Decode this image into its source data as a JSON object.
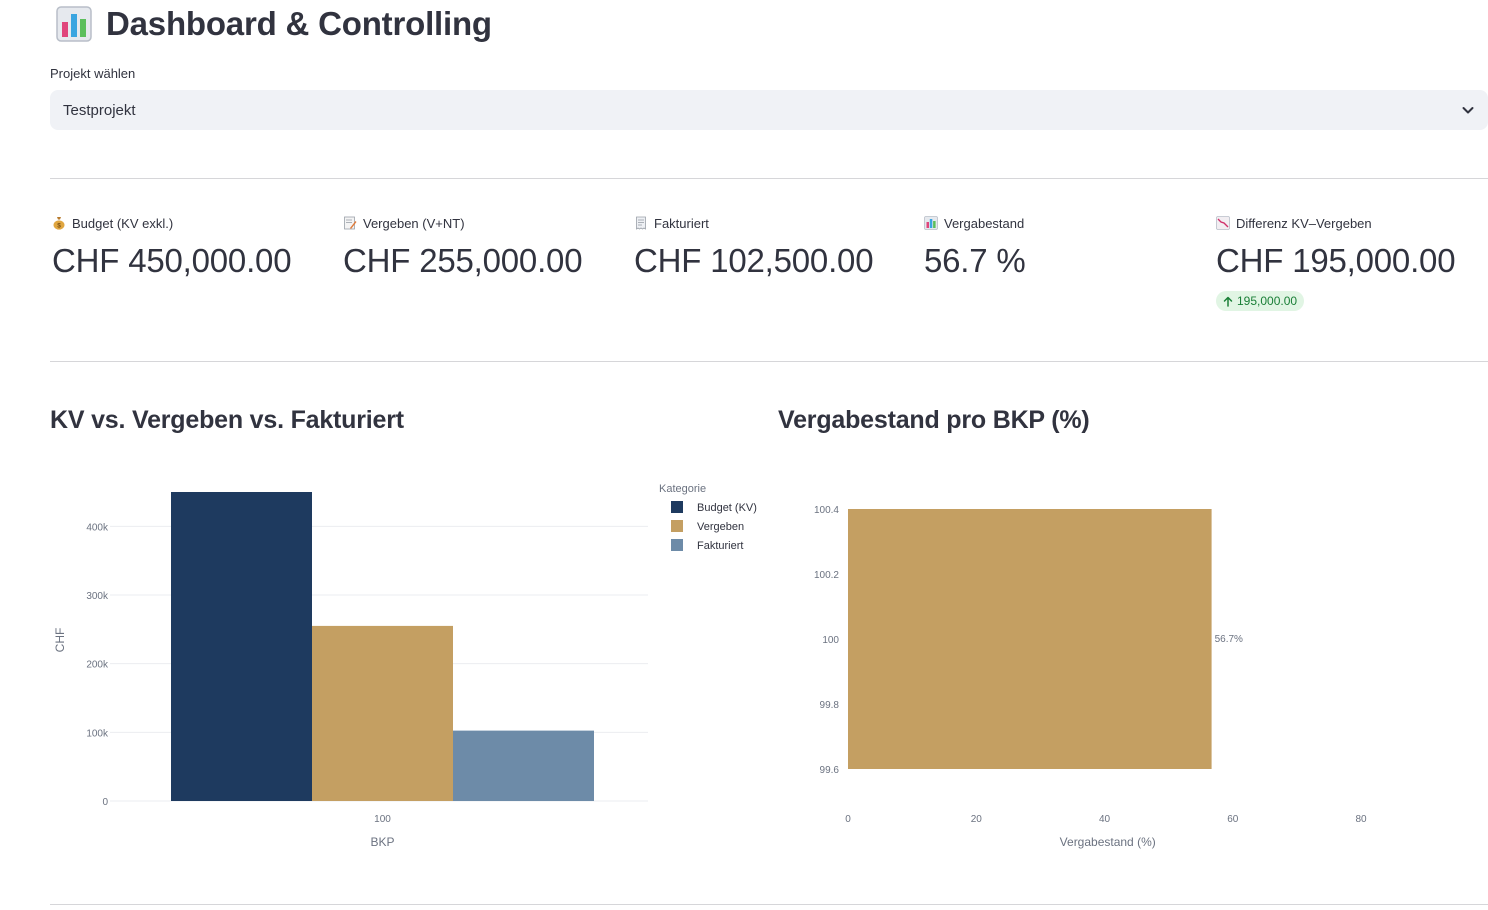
{
  "header": {
    "title": "Dashboard & Controlling",
    "icon": "bar-chart-icon"
  },
  "project_select": {
    "label": "Projekt wählen",
    "value": "Testprojekt",
    "icon": "chevron-down-icon"
  },
  "metrics": [
    {
      "label": "Budget (KV exkl.)",
      "value": "CHF 450,000.00",
      "icon": "money-bag-icon"
    },
    {
      "label": "Vergeben (V+NT)",
      "value": "CHF 255,000.00",
      "icon": "memo-icon"
    },
    {
      "label": "Fakturiert",
      "value": "CHF 102,500.00",
      "icon": "receipt-icon"
    },
    {
      "label": "Vergabestand",
      "value": "56.7 %",
      "icon": "bar-chart-icon"
    },
    {
      "label": "Differenz KV–Vergeben",
      "value": "CHF 195,000.00",
      "icon": "chart-decreasing-icon",
      "delta": "195,000.00",
      "delta_direction": "up"
    }
  ],
  "colors": {
    "budget": "#1e3a5f",
    "vergeben": "#c49f62",
    "fakturiert": "#6d8ba8",
    "delta_bg": "#e1f5e4",
    "delta_text": "#1a7f37"
  },
  "charts": {
    "left": {
      "title": "KV vs. Vergeben vs. Fakturiert"
    },
    "right": {
      "title": "Vergabestand pro BKP (%)"
    }
  },
  "chart_data": [
    {
      "type": "bar",
      "title": "KV vs. Vergeben vs. Fakturiert",
      "xlabel": "BKP",
      "ylabel": "CHF",
      "categories": [
        "100"
      ],
      "series": [
        {
          "name": "Budget (KV)",
          "values": [
            450000
          ]
        },
        {
          "name": "Vergeben",
          "values": [
            255000
          ]
        },
        {
          "name": "Fakturiert",
          "values": [
            102500
          ]
        }
      ],
      "ylim": [
        0,
        450000
      ],
      "yticks": [
        "0",
        "100k",
        "200k",
        "300k",
        "400k"
      ],
      "legend_title": "Kategorie",
      "legend_position": "right",
      "grid": true
    },
    {
      "type": "bar",
      "orientation": "horizontal",
      "title": "Vergabestand pro BKP (%)",
      "xlabel": "Vergabestand (%)",
      "ylabel": "",
      "categories": [
        "100"
      ],
      "values": [
        56.7
      ],
      "data_labels": [
        "56.7%"
      ],
      "xlim": [
        0,
        90
      ],
      "xticks": [
        "0",
        "20",
        "40",
        "60",
        "80"
      ],
      "yticks": [
        "99.6",
        "99.8",
        "100",
        "100.2",
        "100.4"
      ],
      "grid": false
    }
  ]
}
